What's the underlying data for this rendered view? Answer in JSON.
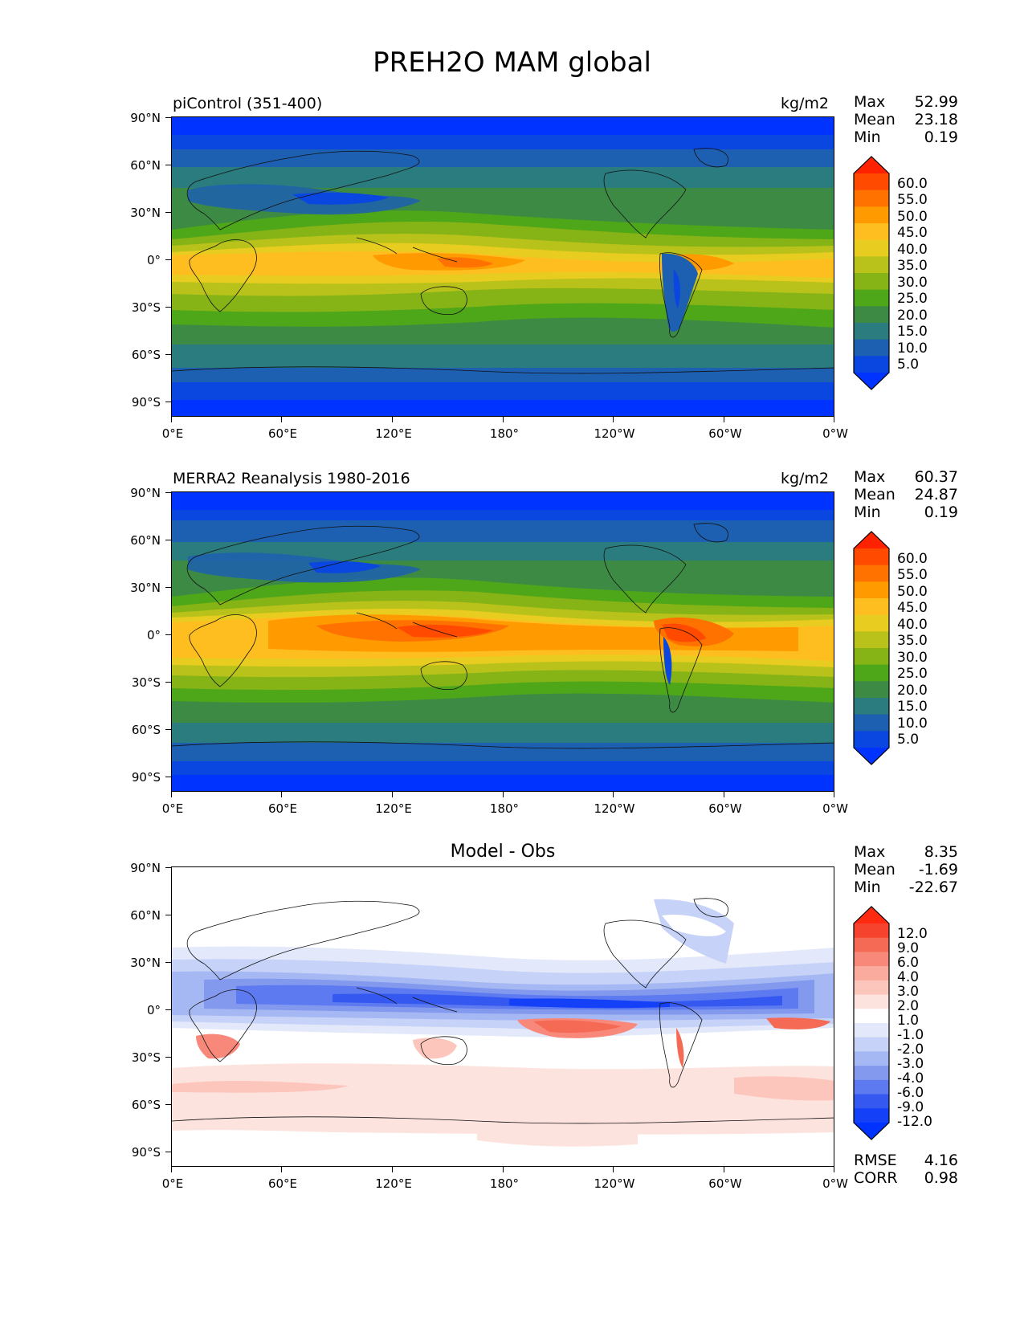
{
  "figure": {
    "title": "PREH2O MAM global"
  },
  "axes": {
    "lat_labels": [
      "90°N",
      "60°N",
      "30°N",
      "0°",
      "30°S",
      "60°S",
      "90°S"
    ],
    "lon_labels": [
      "0°E",
      "60°E",
      "120°E",
      "180°",
      "120°W",
      "60°W",
      "0°W"
    ]
  },
  "panels": [
    {
      "title": "piControl (351-400)",
      "title_position": "left",
      "units": "kg/m2",
      "stats": [
        {
          "label": "Max",
          "value": "52.99"
        },
        {
          "label": "Mean",
          "value": "23.18"
        },
        {
          "label": "Min",
          "value": "0.19"
        }
      ],
      "colorbar": {
        "labels": [
          "60.0",
          "55.0",
          "50.0",
          "45.0",
          "40.0",
          "35.0",
          "30.0",
          "25.0",
          "20.0",
          "15.0",
          "10.0",
          "5.0"
        ],
        "colors": [
          "#ff2200",
          "#ff4a00",
          "#ff7200",
          "#ff9a00",
          "#ffbe20",
          "#e8cc20",
          "#b9c21a",
          "#86b416",
          "#4ea619",
          "#3d8a45",
          "#2a7c7e",
          "#1d5fb0",
          "#0a46e0",
          "#0033ff"
        ]
      }
    },
    {
      "title": "MERRA2 Reanalysis 1980-2016",
      "title_position": "left",
      "units": "kg/m2",
      "stats": [
        {
          "label": "Max",
          "value": "60.37"
        },
        {
          "label": "Mean",
          "value": "24.87"
        },
        {
          "label": "Min",
          "value": "0.19"
        }
      ],
      "colorbar": {
        "labels": [
          "60.0",
          "55.0",
          "50.0",
          "45.0",
          "40.0",
          "35.0",
          "30.0",
          "25.0",
          "20.0",
          "15.0",
          "10.0",
          "5.0"
        ],
        "colors": [
          "#ff2200",
          "#ff4a00",
          "#ff7200",
          "#ff9a00",
          "#ffbe20",
          "#e8cc20",
          "#b9c21a",
          "#86b416",
          "#4ea619",
          "#3d8a45",
          "#2a7c7e",
          "#1d5fb0",
          "#0a46e0",
          "#0033ff"
        ]
      }
    },
    {
      "title": "Model - Obs",
      "title_position": "center",
      "units": "",
      "stats": [
        {
          "label": "Max",
          "value": "8.35"
        },
        {
          "label": "Mean",
          "value": "-1.69"
        },
        {
          "label": "Min",
          "value": "-22.67"
        }
      ],
      "colorbar": {
        "labels": [
          "12.0",
          "9.0",
          "6.0",
          "4.0",
          "3.0",
          "2.0",
          "1.0",
          "-1.0",
          "-2.0",
          "-3.0",
          "-4.0",
          "-6.0",
          "-9.0",
          "-12.0"
        ],
        "colors": [
          "#ff2a10",
          "#f5432e",
          "#f56a55",
          "#f8897a",
          "#fbab9e",
          "#fdc6bd",
          "#fde3de",
          "#ffffff",
          "#e3e9fb",
          "#c6d2f7",
          "#a6b8f3",
          "#8299ee",
          "#5d7af0",
          "#3558f0",
          "#1440f7",
          "#0033ff"
        ]
      },
      "bottom_stats": [
        {
          "label": "RMSE",
          "value": "4.16"
        },
        {
          "label": "CORR",
          "value": "0.98"
        }
      ]
    }
  ]
}
